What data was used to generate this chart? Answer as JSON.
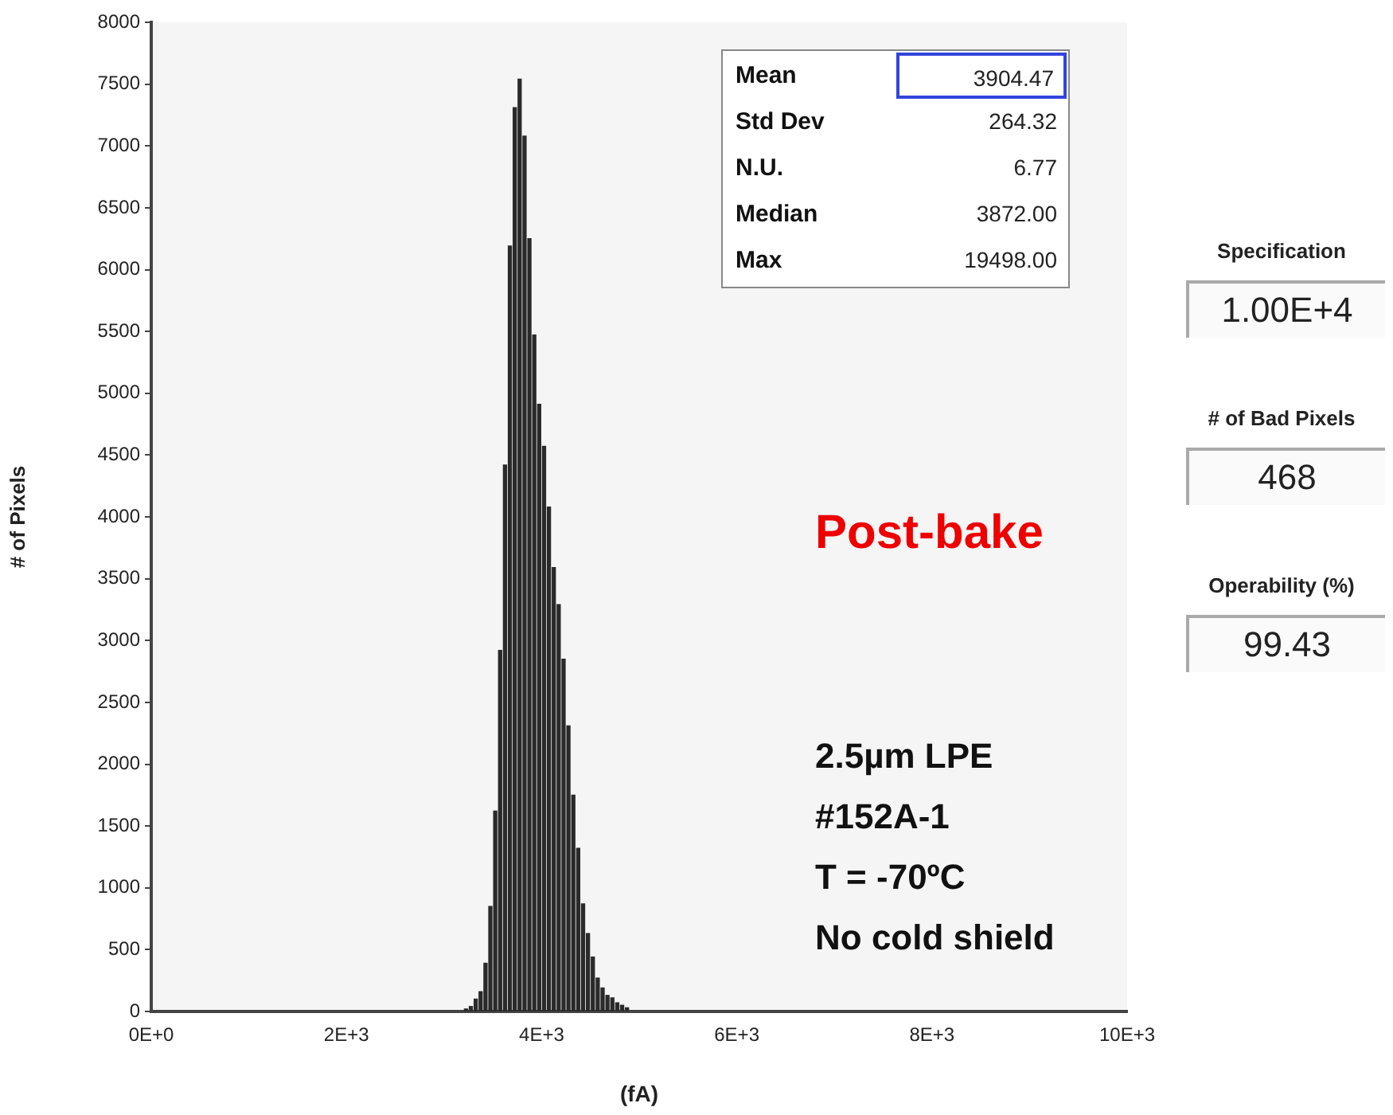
{
  "chart_data": {
    "type": "histogram",
    "xlabel": "(fA)",
    "ylabel": "# of Pixels",
    "bins": [
      3200,
      3250,
      3300,
      3350,
      3400,
      3450,
      3500,
      3550,
      3600,
      3650,
      3700,
      3750,
      3800,
      3850,
      3900,
      3950,
      4000,
      4050,
      4100,
      4150,
      4200,
      4250,
      4300,
      4350,
      4400,
      4450,
      4500,
      4550,
      4600,
      4650,
      4700,
      4750,
      4800,
      4850,
      4900
    ],
    "values": [
      20,
      40,
      100,
      160,
      390,
      850,
      1620,
      2920,
      4420,
      6190,
      7310,
      7540,
      7080,
      6250,
      5470,
      4910,
      4570,
      4080,
      3590,
      3290,
      2850,
      2310,
      1750,
      1320,
      870,
      630,
      440,
      270,
      190,
      130,
      110,
      70,
      50,
      30
    ],
    "color": "#2a2a2a",
    "xlim": [
      0,
      10000
    ],
    "xticks": [
      {
        "value": 0,
        "label": "0E+0"
      },
      {
        "value": 2000,
        "label": "2E+3"
      },
      {
        "value": 4000,
        "label": "4E+3"
      },
      {
        "value": 6000,
        "label": "6E+3"
      },
      {
        "value": 8000,
        "label": "8E+3"
      },
      {
        "value": 10000,
        "label": "10E+3"
      }
    ],
    "ylim": [
      0,
      8000
    ],
    "yticks": [
      0,
      500,
      1000,
      1500,
      2000,
      2500,
      3000,
      3500,
      4000,
      4500,
      5000,
      5500,
      6000,
      6500,
      7000,
      7500,
      8000
    ],
    "grid": false,
    "legend": false,
    "annotations": [
      "Mean",
      "3904.47",
      "Std Dev",
      "264.32",
      "N.U.",
      "6.77",
      "Median",
      "3872.00",
      "Max",
      "19498.00",
      "Specification",
      "1.00E+4",
      "# of Bad Pixels",
      "468",
      "Operability (%)",
      "99.43",
      "Post-bake",
      "2.5µm LPE",
      "#152A-1",
      "T = -70ºC",
      "No cold shield"
    ]
  }
}
